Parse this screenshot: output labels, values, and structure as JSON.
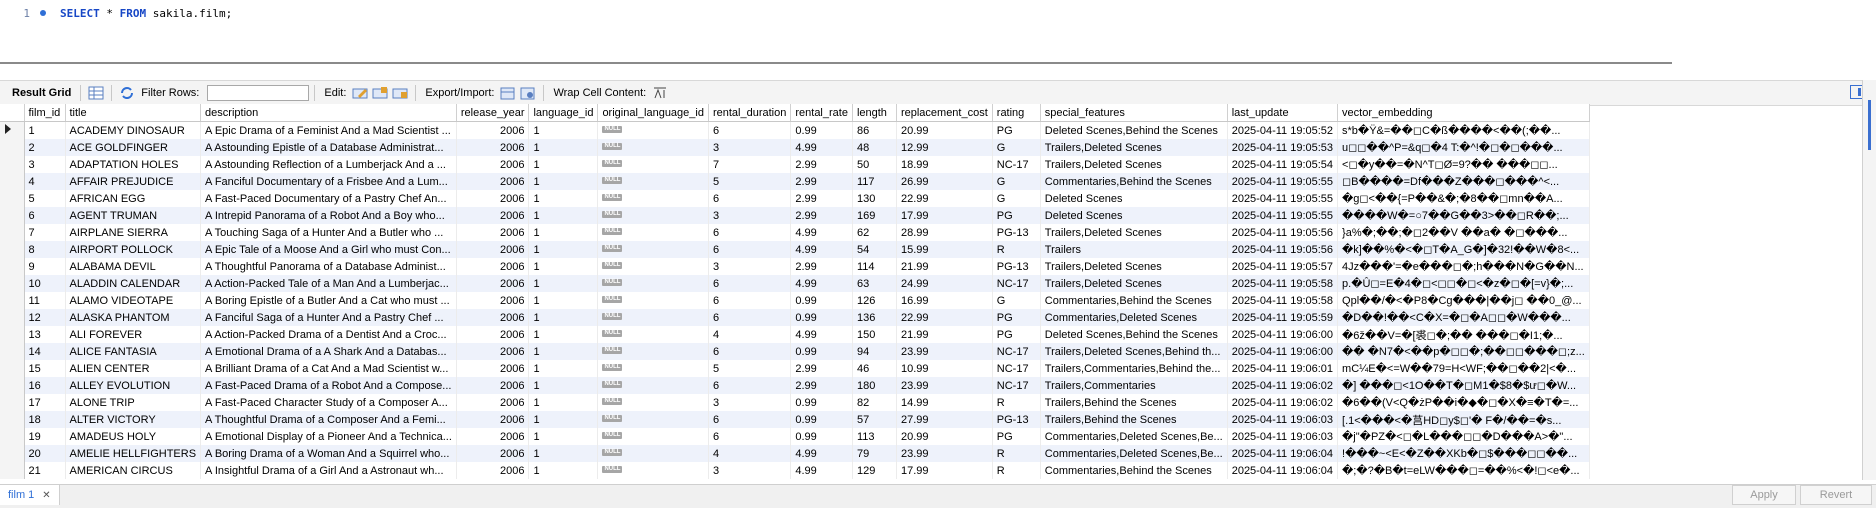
{
  "editor": {
    "line_number": "1",
    "tokens": [
      "SELECT",
      " * ",
      "FROM",
      " sakila.film;"
    ]
  },
  "toolbar": {
    "result_grid": "Result Grid",
    "filter_rows": "Filter Rows:",
    "filter_value": "",
    "edit": "Edit:",
    "export_import": "Export/Import:",
    "wrap_cell": "Wrap Cell Content:"
  },
  "columns": [
    "film_id",
    "title",
    "description",
    "release_year",
    "language_id",
    "original_language_id",
    "rental_duration",
    "rental_rate",
    "length",
    "replacement_cost",
    "rating",
    "special_features",
    "last_update",
    "vector_embedding"
  ],
  "null_label": "NULL",
  "rows": [
    [
      "1",
      "ACADEMY DINOSAUR",
      "A Epic Drama of a Feminist And a Mad Scientist ...",
      "2006",
      "1",
      "NULL",
      "6",
      "0.99",
      "86",
      "20.99",
      "PG",
      "Deleted Scenes,Behind the Scenes",
      "2025-04-11 19:05:52",
      "s*b�Ÿ&=��◻C�ß����<��(;��..."
    ],
    [
      "2",
      "ACE GOLDFINGER",
      "A Astounding Epistle of a Database Administrat...",
      "2006",
      "1",
      "NULL",
      "3",
      "4.99",
      "48",
      "12.99",
      "G",
      "Trailers,Deleted Scenes",
      "2025-04-11 19:05:53",
      "u◻◻��^P=&q◻�4 T:�^!�◻�◻���..."
    ],
    [
      "3",
      "ADAPTATION HOLES",
      "A Astounding Reflection of a Lumberjack And a ...",
      "2006",
      "1",
      "NULL",
      "7",
      "2.99",
      "50",
      "18.99",
      "NC-17",
      "Trailers,Deleted Scenes",
      "2025-04-11 19:05:54",
      "<◻�y��=�N^T◻Ø=9?�� ���◻◻..."
    ],
    [
      "4",
      "AFFAIR PREJUDICE",
      "A Fanciful Documentary of a Frisbee And a Lum...",
      "2006",
      "1",
      "NULL",
      "5",
      "2.99",
      "117",
      "26.99",
      "G",
      "Commentaries,Behind the Scenes",
      "2025-04-11 19:05:55",
      "◻B����=Df���Z���◻���^<..."
    ],
    [
      "5",
      "AFRICAN EGG",
      "A Fast-Paced Documentary of a Pastry Chef An...",
      "2006",
      "1",
      "NULL",
      "6",
      "2.99",
      "130",
      "22.99",
      "G",
      "Deleted Scenes",
      "2025-04-11 19:05:55",
      "�g◻<��{=P��&�;�8��◻mn��A..."
    ],
    [
      "6",
      "AGENT TRUMAN",
      "A Intrepid Panorama of a Robot And a Boy who...",
      "2006",
      "1",
      "NULL",
      "3",
      "2.99",
      "169",
      "17.99",
      "PG",
      "Deleted Scenes",
      "2025-04-11 19:05:55",
      "����W�=○7��G��3>��◻R��;..."
    ],
    [
      "7",
      "AIRPLANE SIERRA",
      "A Touching Saga of a Hunter And a Butler who ...",
      "2006",
      "1",
      "NULL",
      "6",
      "4.99",
      "62",
      "28.99",
      "PG-13",
      "Trailers,Deleted Scenes",
      "2025-04-11 19:05:56",
      "}a%�;��;�◻2��V ��a� �◻���..."
    ],
    [
      "8",
      "AIRPORT POLLOCK",
      "A Epic Tale of a Moose And a Girl who must Con...",
      "2006",
      "1",
      "NULL",
      "6",
      "4.99",
      "54",
      "15.99",
      "R",
      "Trailers",
      "2025-04-11 19:05:56",
      "�k]��%�<�◻T�A_G�]�32!��W�8<..."
    ],
    [
      "9",
      "ALABAMA DEVIL",
      "A Thoughtful Panorama of a Database Administ...",
      "2006",
      "1",
      "NULL",
      "3",
      "2.99",
      "114",
      "21.99",
      "PG-13",
      "Trailers,Deleted Scenes",
      "2025-04-11 19:05:57",
      "4Jz���'=�e���◻�;h���N�G��N..."
    ],
    [
      "10",
      "ALADDIN CALENDAR",
      "A Action-Packed Tale of a Man And a Lumberjac...",
      "2006",
      "1",
      "NULL",
      "6",
      "4.99",
      "63",
      "24.99",
      "NC-17",
      "Trailers,Deleted Scenes",
      "2025-04-11 19:05:58",
      "p.�Û◻=E�4�◻<◻◻�◻<�z�◻�[=v}�;..."
    ],
    [
      "11",
      "ALAMO VIDEOTAPE",
      "A Boring Epistle of a Butler And a Cat who must ...",
      "2006",
      "1",
      "NULL",
      "6",
      "0.99",
      "126",
      "16.99",
      "G",
      "Commentaries,Behind the Scenes",
      "2025-04-11 19:05:58",
      "Qpl��/�<�P8�Cg���|��j◻ ��0_@..."
    ],
    [
      "12",
      "ALASKA PHANTOM",
      "A Fanciful Saga of a Hunter And a Pastry Chef ...",
      "2006",
      "1",
      "NULL",
      "6",
      "0.99",
      "136",
      "22.99",
      "PG",
      "Commentaries,Deleted Scenes",
      "2025-04-11 19:05:59",
      "�D��!��<C�X=�◻�A◻◻�W���..."
    ],
    [
      "13",
      "ALI FOREVER",
      "A Action-Packed Drama of a Dentist And a Croc...",
      "2006",
      "1",
      "NULL",
      "4",
      "4.99",
      "150",
      "21.99",
      "PG",
      "Deleted Scenes,Behind the Scenes",
      "2025-04-11 19:06:00",
      "�6ž��V=�[裘◻�;�� ���◻�I1;�..."
    ],
    [
      "14",
      "ALICE FANTASIA",
      "A Emotional Drama of a A Shark And a Databas...",
      "2006",
      "1",
      "NULL",
      "6",
      "0.99",
      "94",
      "23.99",
      "NC-17",
      "Trailers,Deleted Scenes,Behind th...",
      "2025-04-11 19:06:00",
      "�� �N7�<��p�◻◻�;��◻◻���◻;z..."
    ],
    [
      "15",
      "ALIEN CENTER",
      "A Brilliant Drama of a Cat And a Mad Scientist w...",
      "2006",
      "1",
      "NULL",
      "5",
      "2.99",
      "46",
      "10.99",
      "NC-17",
      "Trailers,Commentaries,Behind the...",
      "2025-04-11 19:06:01",
      "mC¼E�<=W��79=H<WF;��◻��2|<�..."
    ],
    [
      "16",
      "ALLEY EVOLUTION",
      "A Fast-Paced Drama of a Robot And a Compose...",
      "2006",
      "1",
      "NULL",
      "6",
      "2.99",
      "180",
      "23.99",
      "NC-17",
      "Trailers,Commentaries",
      "2025-04-11 19:06:02",
      "�] ���◻<1O��T�◻M1�$8�$ư◻�W..."
    ],
    [
      "17",
      "ALONE TRIP",
      "A Fast-Paced Character Study of a Composer A...",
      "2006",
      "1",
      "NULL",
      "3",
      "0.99",
      "82",
      "14.99",
      "R",
      "Trailers,Behind the Scenes",
      "2025-04-11 19:06:02",
      "�6��(V<Q�żP��i�◆�◻�X�≡�T�=..."
    ],
    [
      "18",
      "ALTER VICTORY",
      "A Thoughtful Drama of a Composer And a Femi...",
      "2006",
      "1",
      "NULL",
      "6",
      "0.99",
      "57",
      "27.99",
      "PG-13",
      "Trailers,Behind the Scenes",
      "2025-04-11 19:06:03",
      "[.1<���<�莒HD◻y$◻'� F�/��=�s..."
    ],
    [
      "19",
      "AMADEUS HOLY",
      "A Emotional Display of a Pioneer And a Technica...",
      "2006",
      "1",
      "NULL",
      "6",
      "0.99",
      "113",
      "20.99",
      "PG",
      "Commentaries,Deleted Scenes,Be...",
      "2025-04-11 19:06:03",
      "�j\"�PZ�<◻�L���◻◻�D���A>�\"..."
    ],
    [
      "20",
      "AMELIE HELLFIGHTERS",
      "A Boring Drama of a Woman And a Squirrel who...",
      "2006",
      "1",
      "NULL",
      "4",
      "4.99",
      "79",
      "23.99",
      "R",
      "Commentaries,Deleted Scenes,Be...",
      "2025-04-11 19:06:04",
      "!���~<E<�Z��XKb�◻$���◻◻��..."
    ],
    [
      "21",
      "AMERICAN CIRCUS",
      "A Insightful Drama of a Girl And a Astronaut wh...",
      "2006",
      "1",
      "NULL",
      "3",
      "4.99",
      "129",
      "17.99",
      "R",
      "Commentaries,Behind the Scenes",
      "2025-04-11 19:06:04",
      "�;�?�B�t=eLW���◻=��%<�!◻<e�..."
    ]
  ],
  "bottom": {
    "tab_label": "film 1",
    "tab_close": "✕",
    "apply": "Apply",
    "revert": "Revert"
  },
  "colors": {
    "keyword": "#1747c6",
    "accent": "#2f6fd6",
    "alt_row": "#eef2fb"
  }
}
